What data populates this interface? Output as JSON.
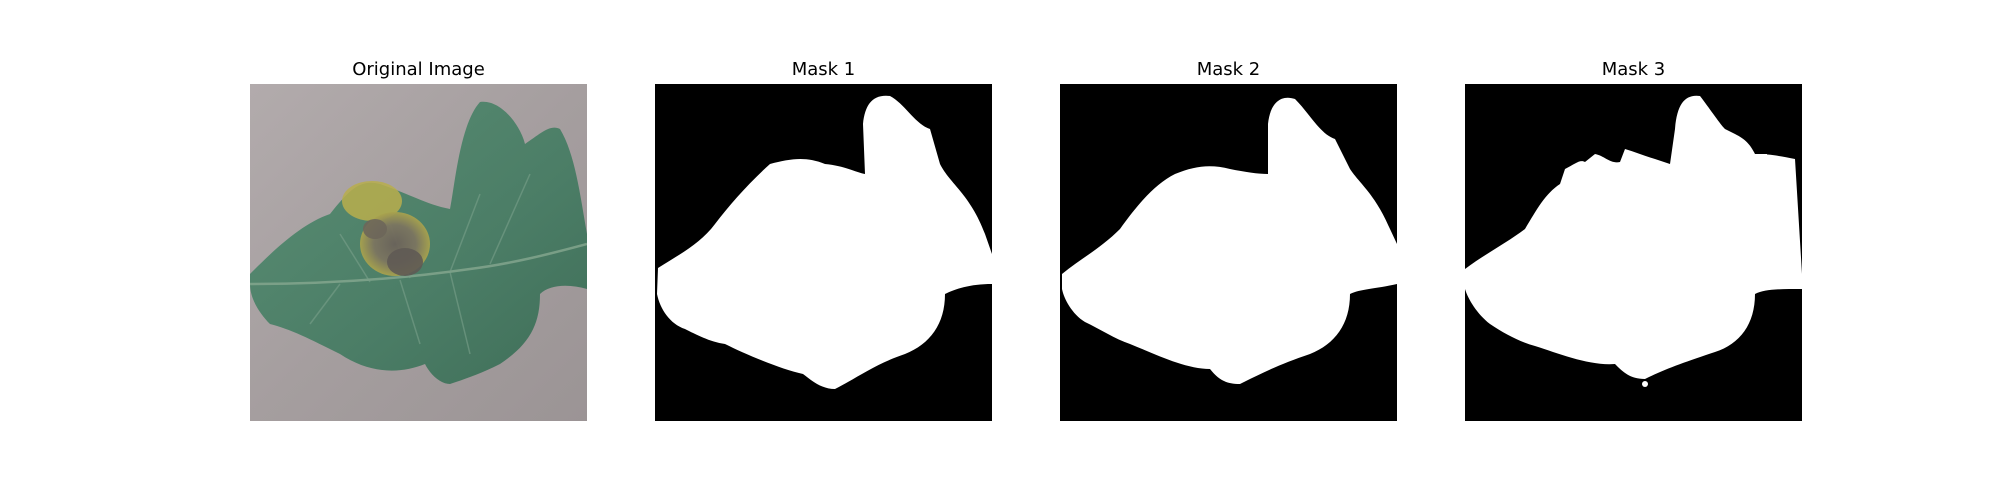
{
  "panels": [
    {
      "title": "Original Image",
      "kind": "photo"
    },
    {
      "title": "Mask 1",
      "kind": "mask"
    },
    {
      "title": "Mask 2",
      "kind": "mask"
    },
    {
      "title": "Mask 3",
      "kind": "mask"
    }
  ],
  "colors": {
    "background": "#ffffff",
    "mask_background": "#000000",
    "mask_foreground": "#ffffff",
    "photo_backdrop": "#a9a3a4",
    "leaf_green": "#4e8268",
    "lesion_yellow": "#b5a94a",
    "lesion_brown": "#6b6556"
  }
}
